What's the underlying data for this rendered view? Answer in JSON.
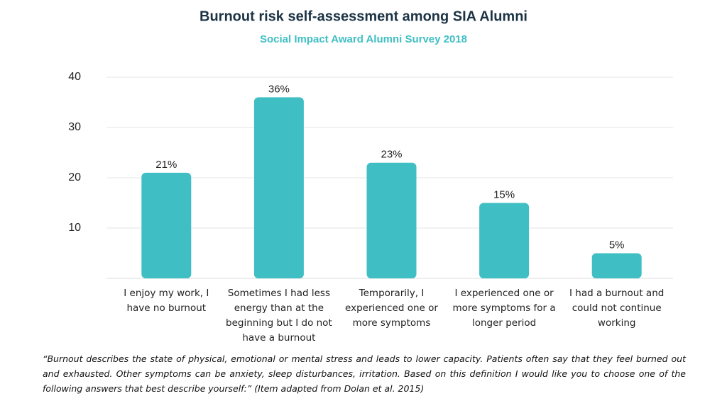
{
  "chart_data": {
    "type": "bar",
    "title": "Burnout risk self-assessment among SIA Alumni",
    "subtitle": "Social Impact Award Alumni Survey 2018",
    "categories": [
      "I enjoy my work, I have no burnout",
      "Sometimes I had less energy than at the beginning but I do not have a burnout",
      "Temporarily, I experienced one or more symptoms",
      "I experienced one or more symptoms for a longer period",
      "I had a burnout and could not continue working"
    ],
    "values": [
      21,
      36,
      23,
      15,
      5
    ],
    "value_labels": [
      "21%",
      "36%",
      "23%",
      "15%",
      "5%"
    ],
    "color": "#3fbfc4",
    "ylim": [
      0,
      40
    ],
    "yticks": [
      10,
      20,
      30,
      40
    ],
    "grid": true,
    "note": "“Burnout describes the state of physical, emotional or mental stress and leads to lower capacity. Patients often say that they feel burned out and exhausted. Other symptoms can be anxiety, sleep disturbances, irritation. Based on this definition I would like you to choose one of the following answers that best describe yourself:” (Item adapted from Dolan et al. 2015)"
  }
}
